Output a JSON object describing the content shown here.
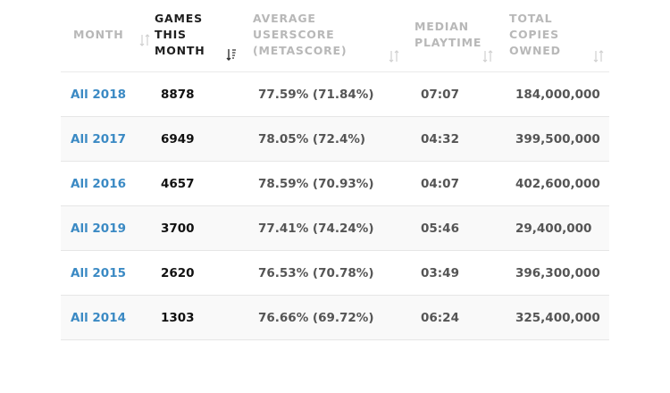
{
  "table": {
    "headers": [
      {
        "id": "month",
        "label": "MONTH",
        "active": false
      },
      {
        "id": "games",
        "label": "GAMES THIS MONTH",
        "active": true
      },
      {
        "id": "score",
        "label": "AVERAGE USERSCORE (METASCORE)",
        "active": false
      },
      {
        "id": "playtime",
        "label": "MEDIAN PLAYTIME",
        "active": false
      },
      {
        "id": "copies",
        "label": "TOTAL COPIES OWNED",
        "active": false
      }
    ],
    "rows": [
      {
        "month": "All 2018",
        "games": "8878",
        "score": "77.59% (71.84%)",
        "playtime": "07:07",
        "copies": "184,000,000"
      },
      {
        "month": "All 2017",
        "games": "6949",
        "score": "78.05% (72.4%)",
        "playtime": "04:32",
        "copies": "399,500,000"
      },
      {
        "month": "All 2016",
        "games": "4657",
        "score": "78.59% (70.93%)",
        "playtime": "04:07",
        "copies": "402,600,000"
      },
      {
        "month": "All 2019",
        "games": "3700",
        "score": "77.41% (74.24%)",
        "playtime": "05:46",
        "copies": "29,400,000"
      },
      {
        "month": "All 2015",
        "games": "2620",
        "score": "76.53% (70.78%)",
        "playtime": "03:49",
        "copies": "396,300,000"
      },
      {
        "month": "All 2014",
        "games": "1303",
        "score": "76.66% (69.72%)",
        "playtime": "06:24",
        "copies": "325,400,000"
      }
    ]
  },
  "colors": {
    "link": "#3b8ac4",
    "header_inactive": "#b8b8b8",
    "header_active": "#1e1e1e",
    "row_alt_bg": "#f9f9f9"
  },
  "icons": {
    "sort_inactive": "sort-both-icon",
    "sort_active": "sort-descending-icon"
  }
}
